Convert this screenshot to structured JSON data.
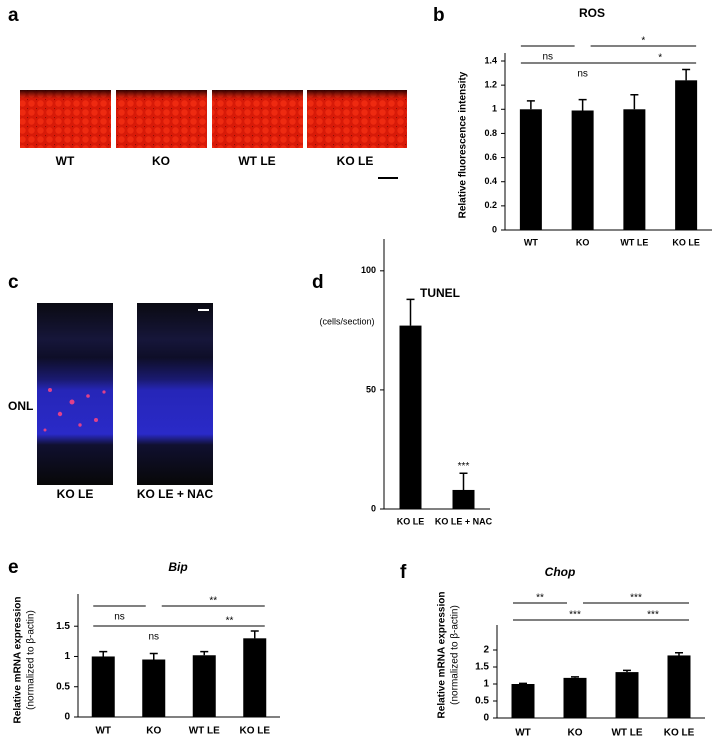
{
  "figure": {
    "images": [
      {
        "panel": "a",
        "labels": [
          "WT",
          "KO",
          "WT LE",
          "KO LE"
        ]
      },
      {
        "panel": "c",
        "region_label": "ONL",
        "labels": [
          "KO LE",
          "KO LE + NAC"
        ]
      }
    ]
  },
  "chart_data": [
    {
      "type": "bar",
      "panel": "b",
      "title": "ROS",
      "ylabel": "Relative fluorescence intensity",
      "categories": [
        "WT",
        "KO",
        "WT LE",
        "KO LE"
      ],
      "values": [
        1.0,
        0.99,
        1.0,
        1.24
      ],
      "errors": [
        0.07,
        0.09,
        0.12,
        0.09
      ],
      "color": "#000000",
      "ylim": [
        0,
        1.4
      ],
      "yticks": [
        0,
        0.2,
        0.4,
        0.6,
        0.8,
        1,
        1.2,
        1.4
      ],
      "brackets": [
        {
          "label": "ns",
          "from": 0,
          "to": 1
        },
        {
          "label": "*",
          "from": 1,
          "to": 3
        },
        {
          "label": "ns",
          "from": 0,
          "to": 2
        },
        {
          "label": "*",
          "from": 2,
          "to": 3
        }
      ]
    },
    {
      "type": "bar",
      "panel": "d",
      "title": "TUNEL",
      "ylabel": "(cells/section)",
      "categories": [
        "KO LE",
        "KO LE + NAC"
      ],
      "values": [
        77,
        8
      ],
      "errors": [
        11,
        7
      ],
      "color": "#000000",
      "ylim": [
        0,
        110
      ],
      "yticks": [
        0,
        50,
        100
      ],
      "annotations": [
        {
          "label": "***",
          "index": 1
        }
      ]
    },
    {
      "type": "bar",
      "panel": "e",
      "title": "Bip",
      "title_style": "italic",
      "ylabel": "Relative mRNA expression",
      "ylabel_note": "(normalized to β-actin)",
      "categories": [
        "WT",
        "KO",
        "WT LE",
        "KO LE"
      ],
      "values": [
        1.0,
        0.95,
        1.02,
        1.3
      ],
      "errors": [
        0.08,
        0.1,
        0.06,
        0.12
      ],
      "color": "#000000",
      "ylim": [
        0,
        1.9
      ],
      "yticks": [
        0,
        0.5,
        1,
        1.5
      ],
      "brackets": [
        {
          "label": "ns",
          "from": 0,
          "to": 1
        },
        {
          "label": "**",
          "from": 1,
          "to": 3
        },
        {
          "label": "ns",
          "from": 0,
          "to": 2
        },
        {
          "label": "**",
          "from": 2,
          "to": 3
        }
      ]
    },
    {
      "type": "bar",
      "panel": "f",
      "title": "Chop",
      "title_style": "italic",
      "ylabel": "Relative mRNA expression",
      "ylabel_note": "(normalized to β-actin)",
      "categories": [
        "WT",
        "KO",
        "WT LE",
        "KO LE"
      ],
      "values": [
        1.0,
        1.18,
        1.35,
        1.84
      ],
      "errors": [
        0.02,
        0.03,
        0.05,
        0.08
      ],
      "color": "#000000",
      "ylim": [
        0,
        2.5
      ],
      "yticks": [
        0,
        0.5,
        1,
        1.5,
        2
      ],
      "brackets": [
        {
          "label": "**",
          "from": 0,
          "to": 1
        },
        {
          "label": "***",
          "from": 1,
          "to": 3
        },
        {
          "label": "***",
          "from": 0,
          "to": 2
        },
        {
          "label": "***",
          "from": 2,
          "to": 3
        }
      ]
    }
  ]
}
